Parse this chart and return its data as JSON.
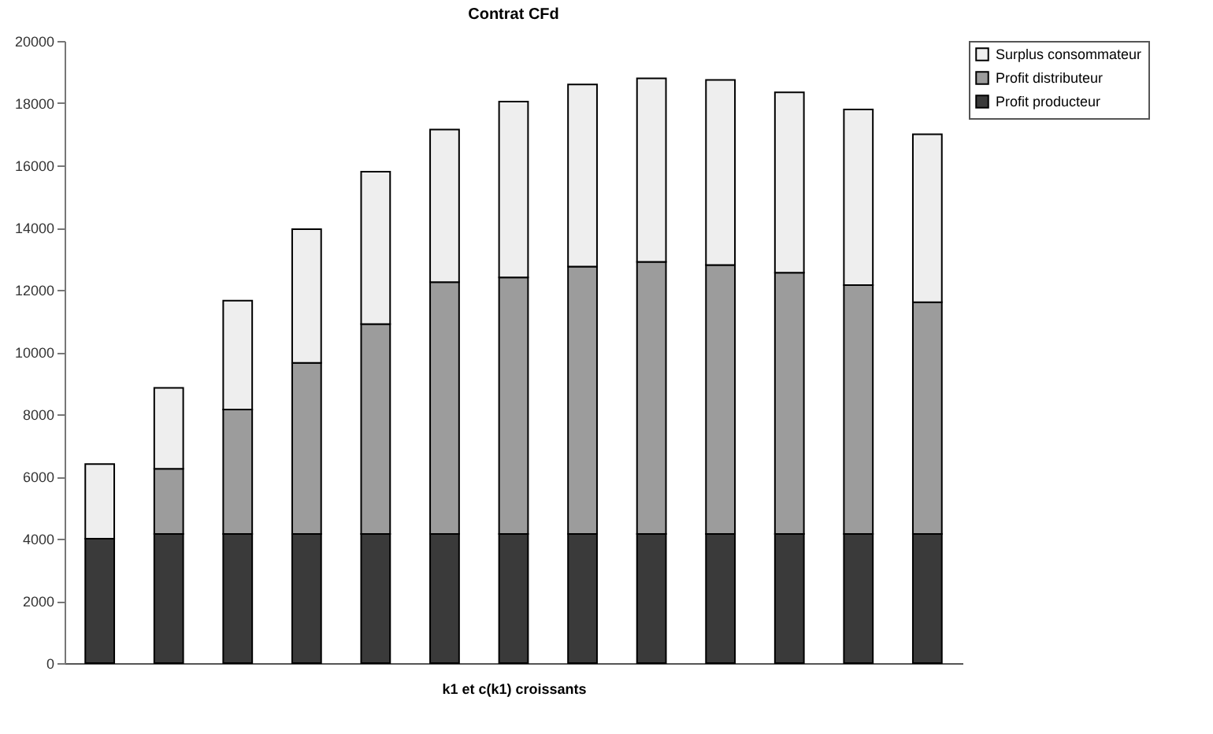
{
  "chart_data": {
    "type": "bar",
    "title": "Contrat CFd",
    "xlabel": "k1 et c(k1) croissants",
    "stacked": true,
    "legend": "right",
    "grid": false,
    "categories": [
      null,
      null,
      null,
      null,
      null,
      null,
      null,
      null,
      null,
      null,
      null,
      null,
      null
    ],
    "ylim": [
      0,
      20000
    ],
    "yticks": [
      0,
      2000,
      4000,
      6000,
      8000,
      10000,
      12000,
      14000,
      16000,
      18000,
      20000
    ],
    "series": [
      {
        "name": "Profit producteur",
        "color": "#3a3a3a",
        "values": [
          4000,
          4150,
          4150,
          4150,
          4150,
          4150,
          4150,
          4150,
          4150,
          4150,
          4150,
          4150,
          4150
        ]
      },
      {
        "name": "Profit distributeur",
        "color": "#9c9c9c",
        "values": [
          0,
          2100,
          4000,
          5500,
          6750,
          8100,
          8250,
          8600,
          8750,
          8650,
          8400,
          8000,
          7450
        ]
      },
      {
        "name": "Surplus consommateur",
        "color": "#eeeeee",
        "values": [
          2400,
          2600,
          3500,
          4300,
          4900,
          4900,
          5650,
          5850,
          5900,
          5950,
          5800,
          5650,
          5400
        ]
      }
    ]
  }
}
